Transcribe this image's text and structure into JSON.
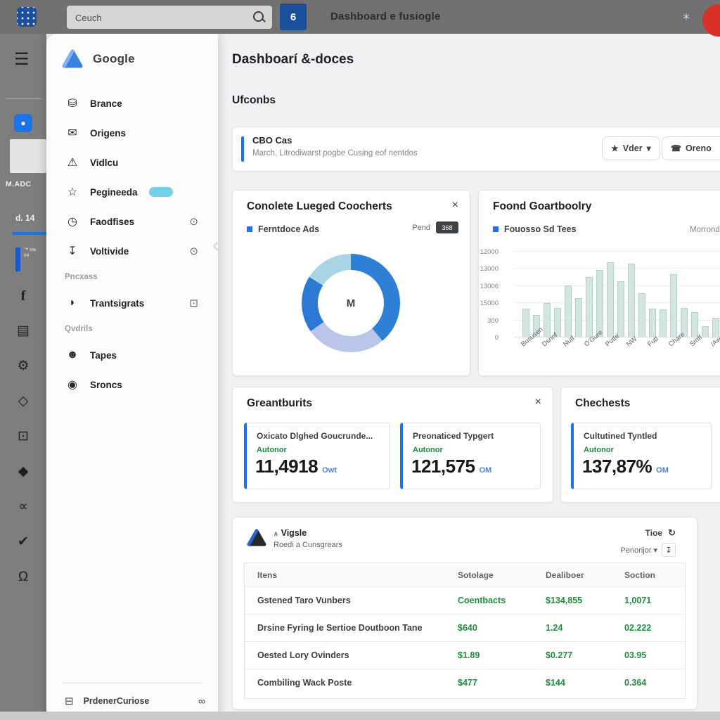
{
  "topbar": {
    "search_value": "Ceuch",
    "count_badge": "6",
    "title": "Dashboard e fusiogle",
    "right_icon": "∗"
  },
  "rail": {
    "account_label": "M.ADC",
    "stat_label": "d. 14",
    "campaign_line1": "™ Ide",
    "campaign_line2": "04",
    "icons": [
      {
        "name": "facebook-icon",
        "glyph": "f"
      },
      {
        "name": "briefcase-icon",
        "glyph": "▤"
      },
      {
        "name": "gear-icon",
        "glyph": "⚙"
      },
      {
        "name": "diamond-outline-icon",
        "glyph": "◇"
      },
      {
        "name": "camera-icon",
        "glyph": "⊡"
      },
      {
        "name": "diamond-icon",
        "glyph": "◆"
      },
      {
        "name": "infinity-icon",
        "glyph": "∝"
      },
      {
        "name": "shield-check-icon",
        "glyph": "✔"
      },
      {
        "name": "person-bell-icon",
        "glyph": "Ω"
      }
    ]
  },
  "sidebar": {
    "brand": "Google",
    "items": [
      {
        "type": "item",
        "icon": "database-icon",
        "glyph": "⛁",
        "label": "Brance"
      },
      {
        "type": "item",
        "icon": "mail-icon",
        "glyph": "✉",
        "label": "Origens"
      },
      {
        "type": "item",
        "icon": "warning-triangle-icon",
        "glyph": "⚠",
        "label": "Vidlcu"
      },
      {
        "type": "item",
        "icon": "star-icon",
        "glyph": "☆",
        "label": "Pegineeda",
        "badge": true
      },
      {
        "type": "item",
        "icon": "clock-icon",
        "glyph": "◷",
        "label": "Faodfises",
        "right_icon": "info-circle-icon",
        "right_glyph": "⊙"
      },
      {
        "type": "item",
        "icon": "download-icon",
        "glyph": "↧",
        "label": "Voltivide",
        "right_icon": "info-circle-icon",
        "right_glyph": "⊙"
      },
      {
        "type": "section",
        "label": "Pncxass"
      },
      {
        "type": "item",
        "icon": "twitter-icon",
        "glyph": "◗",
        "label": "Trantsigrats",
        "right_icon": "square-badge-icon",
        "right_glyph": "⊡"
      },
      {
        "type": "section",
        "label": "Qvdrils"
      },
      {
        "type": "item",
        "icon": "person-icon",
        "glyph": "☻",
        "label": "Tapes"
      },
      {
        "type": "item",
        "icon": "target-icon",
        "glyph": "◉",
        "label": "Sroncs"
      }
    ],
    "footer_label": "PrdenerCuriose"
  },
  "main": {
    "page_title": "Dashboarí &-doces",
    "section_title": "Ufconbs",
    "banner": {
      "title": "CBO Cas",
      "subtitle": "March, Litrodiwarst pogbe Cusing eof nentdos",
      "btn1": "Vder",
      "btn2": "Oreno"
    },
    "donut_card": {
      "title": "Conolete Lueged Coocherts",
      "legend": "Ferntdoce Ads",
      "toggle_label": "Pend",
      "toggle_badge": "368",
      "center_label": "M"
    },
    "bar_card": {
      "title": "Foond Goartboolry",
      "legend": "Fouosso Sd Tees",
      "right_legend": "Morrondie"
    },
    "metrics_card": {
      "title": "Greantburits",
      "boxes": [
        {
          "label": "Oxicato Dlghed Goucrunde...",
          "sub": "Autonor",
          "value": "11,4918",
          "suffix": "Owt"
        },
        {
          "label": "Preonaticed Typgert",
          "sub": "Autonor",
          "value": "121,575",
          "suffix": "OM"
        }
      ]
    },
    "checks_card": {
      "title": "Chechests",
      "boxes": [
        {
          "label": "Cultutined Tyntled",
          "sub": "Autonor",
          "value": "137,87%",
          "suffix": "OM"
        }
      ]
    },
    "table_card": {
      "brand_line1": "Vigsle",
      "brand_line2": "Roedi a Cunsgrears",
      "control1": "Tioe",
      "control2": "Penorijor",
      "headers": [
        "Itens",
        "Sotolage",
        "Dealiboer",
        "Soction"
      ],
      "rows": [
        [
          "Gstened Taro Vunbers",
          "Coentbacts",
          "$134,855",
          "1,0071"
        ],
        [
          "Drsine Fyring le Sertioe Doutboon Tane",
          "$640",
          "1.24",
          "02.222"
        ],
        [
          "Oested Lory Ovinders",
          "$1.89",
          "$0.277",
          "03.95"
        ],
        [
          "Combiling Wack Poste",
          "$477",
          "$144",
          "0.364"
        ]
      ]
    }
  },
  "chart_data": [
    {
      "type": "pie",
      "title": "Conolete Lueged Coocherts",
      "legend": [
        "Ferntdoce Ads"
      ],
      "center_label": "M",
      "segments": [
        {
          "name": "segment-1",
          "value": 38.9,
          "color": "#2e7fd6"
        },
        {
          "name": "segment-2",
          "value": 26.4,
          "color": "#b9c6ea"
        },
        {
          "name": "segment-3",
          "value": 18.6,
          "color": "#2b79d4"
        },
        {
          "name": "segment-4",
          "value": 16.1,
          "color": "#a9d4e6"
        }
      ]
    },
    {
      "type": "bar",
      "title": "Foond Goartboolry",
      "legend": "Fouosso Sd Tees",
      "ylim": [
        0,
        12000
      ],
      "y_ticklabels": [
        "12000",
        "13000",
        "13006",
        "15000",
        "300",
        "0"
      ],
      "x_ticklabels": [
        "Bususen",
        "Dsnnf",
        "Nutf",
        "O'Gure",
        "Putte",
        "NW",
        "Futt",
        "Chare",
        "Smff",
        "/Aw"
      ],
      "values": [
        3960,
        3000,
        4680,
        4080,
        7200,
        5400,
        8400,
        9360,
        10440,
        7800,
        10200,
        6120,
        3960,
        3840,
        8760,
        4080,
        3480,
        1440,
        2640,
        7440,
        4200
      ],
      "bar_color": "#d2e5e1",
      "grid": true,
      "legend_position": "top-left"
    }
  ]
}
